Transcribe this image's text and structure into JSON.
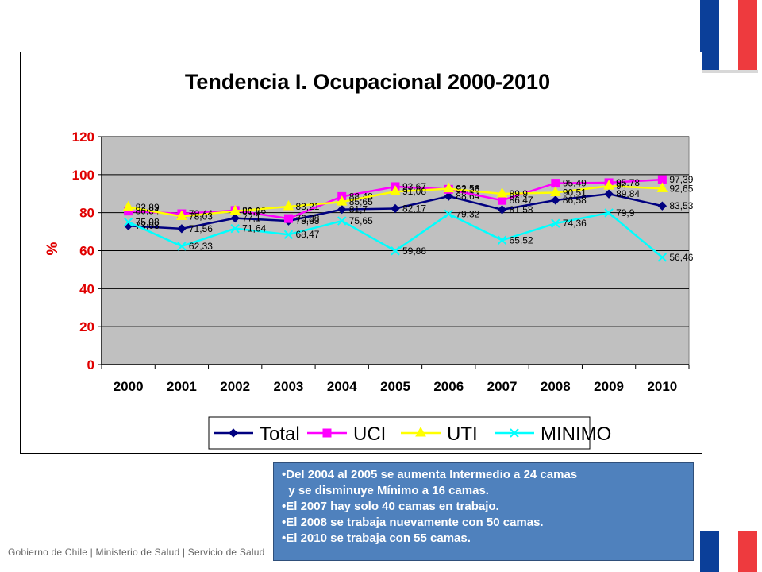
{
  "footer": {
    "text": "Gobierno de Chile | Ministerio de Salud | Servicio de Salud"
  },
  "notes": {
    "lines": [
      "•Del 2004 al 2005 se aumenta Intermedio a 24 camas",
      "  y se disminuye Mínimo a 16 camas.",
      "•El 2007 hay solo 40 camas en trabajo.",
      "•El 2008 se trabaja nuevamente con 50 camas.",
      "•El 2010 se trabaja con 55 camas."
    ]
  },
  "colors": {
    "flag_blue": "#0b3f99",
    "flag_red": "#ee3a3e",
    "notes_bg": "#4f81bd"
  },
  "chart_data": {
    "type": "line",
    "title": "Tendencia I. Ocupacional 2000-2010",
    "xlabel": "",
    "ylabel": "%",
    "ylim": [
      0,
      120
    ],
    "yticks": [
      0,
      20,
      40,
      60,
      80,
      100,
      120
    ],
    "grid": "horizontal",
    "plot_background": "#c0c0c0",
    "legend_position": "bottom",
    "categories": [
      "2000",
      "2001",
      "2002",
      "2003",
      "2004",
      "2005",
      "2006",
      "2007",
      "2008",
      "2009",
      "2010"
    ],
    "series": [
      {
        "name": "Total",
        "color": "#000080",
        "marker": "diamond",
        "values": [
          73.08,
          71.56,
          77.1,
          75.63,
          81.7,
          82.17,
          88.64,
          81.58,
          86.58,
          89.84,
          83.53
        ],
        "labels": [
          "73,08",
          "71,56",
          "77,1",
          "75,63",
          "81,7",
          "82,17",
          "88,64",
          "81,58",
          "86,58",
          "89,84",
          "83,53"
        ]
      },
      {
        "name": "UCI",
        "color": "#ff00ff",
        "marker": "square",
        "values": [
          80.84,
          79.44,
          81.16,
          76.88,
          88.48,
          93.67,
          92.26,
          86.47,
          95.49,
          95.78,
          97.39
        ],
        "labels": [
          "80,84",
          "79,44",
          "81,16",
          "76,88",
          "88,48",
          "93,67",
          "92,26",
          "86,47",
          "95,49",
          "95,78",
          "97,39"
        ]
      },
      {
        "name": "UTI",
        "color": "#ffff00",
        "marker": "triangle",
        "values": [
          82.89,
          78.03,
          80.8,
          83.21,
          85.65,
          91.08,
          92.56,
          89.9,
          90.51,
          94,
          92.65
        ],
        "labels": [
          "82,89",
          "78,03",
          "80,8",
          "83,21",
          "85,65",
          "91,08",
          "92,56",
          "89,9",
          "90,51",
          "94",
          "92,65"
        ]
      },
      {
        "name": "MINIMO",
        "color": "#00ffff",
        "marker": "x",
        "values": [
          75.08,
          62.33,
          71.64,
          68.47,
          75.65,
          59.88,
          79.32,
          65.52,
          74.36,
          79.9,
          56.46
        ],
        "labels": [
          "75,08",
          "62,33",
          "71,64",
          "68,47",
          "75,65",
          "59,88",
          "79,32",
          "65,52",
          "74,36",
          "79,9",
          "56,46"
        ]
      }
    ]
  }
}
